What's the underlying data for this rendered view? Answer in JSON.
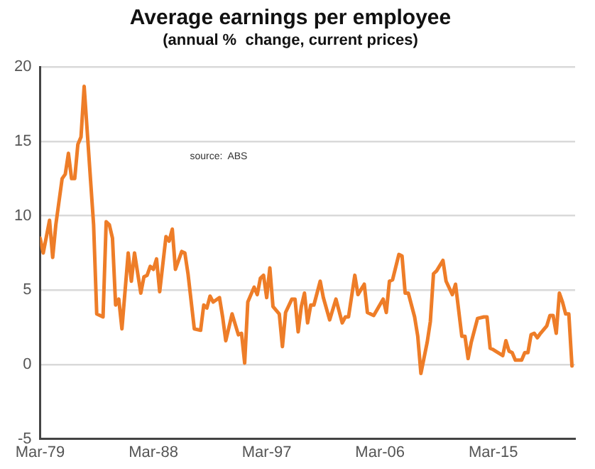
{
  "chart_data": {
    "type": "line",
    "title": "Average earnings per employee",
    "subtitle": "(annual %  change, current prices)",
    "annotations": [
      "source:  ABS"
    ],
    "x": [
      "1979-03",
      "1979-06",
      "1979-12",
      "1980-03",
      "1980-06",
      "1980-12",
      "1981-03",
      "1981-06",
      "1981-09",
      "1981-12",
      "1982-03",
      "1982-06",
      "1982-09",
      "1983-06",
      "1983-09",
      "1984-03",
      "1984-06",
      "1984-09",
      "1984-12",
      "1985-03",
      "1985-06",
      "1985-09",
      "1986-03",
      "1986-06",
      "1986-09",
      "1987-03",
      "1987-06",
      "1987-09",
      "1987-12",
      "1988-03",
      "1988-06",
      "1988-09",
      "1989-03",
      "1989-06",
      "1989-09",
      "1989-12",
      "1990-06",
      "1990-09",
      "1990-12",
      "1991-06",
      "1991-12",
      "1992-03",
      "1992-06",
      "1992-09",
      "1992-12",
      "1993-06",
      "1993-09",
      "1993-12",
      "1994-06",
      "1994-12",
      "1995-03",
      "1995-06",
      "1995-09",
      "1996-03",
      "1996-06",
      "1996-09",
      "1996-12",
      "1997-03",
      "1997-06",
      "1997-09",
      "1998-03",
      "1998-06",
      "1998-09",
      "1999-03",
      "1999-06",
      "1999-09",
      "1999-12",
      "2000-03",
      "2000-06",
      "2000-09",
      "2000-12",
      "2001-06",
      "2001-09",
      "2002-03",
      "2002-09",
      "2003-03",
      "2003-06",
      "2003-09",
      "2004-03",
      "2004-06",
      "2004-12",
      "2005-03",
      "2005-09",
      "2006-06",
      "2006-09",
      "2006-12",
      "2007-03",
      "2007-09",
      "2007-12",
      "2008-03",
      "2008-06",
      "2008-12",
      "2009-03",
      "2009-06",
      "2009-12",
      "2010-03",
      "2010-06",
      "2010-09",
      "2011-03",
      "2011-06",
      "2011-12",
      "2012-03",
      "2012-09",
      "2012-12",
      "2013-03",
      "2013-06",
      "2013-12",
      "2014-06",
      "2014-09",
      "2014-12",
      "2015-03",
      "2015-12",
      "2016-03",
      "2016-06",
      "2016-09",
      "2016-12",
      "2017-06",
      "2017-09",
      "2017-12",
      "2018-03",
      "2018-06",
      "2018-09",
      "2018-12",
      "2019-06",
      "2019-09",
      "2019-12",
      "2020-03",
      "2020-06",
      "2020-09",
      "2020-12",
      "2021-03",
      "2021-06"
    ],
    "series": [
      {
        "color": "#ee7d28",
        "values": [
          8.5,
          7.5,
          9.7,
          7.2,
          9.4,
          12.5,
          12.8,
          14.2,
          12.5,
          12.5,
          14.8,
          15.3,
          18.7,
          9.4,
          3.4,
          3.2,
          9.6,
          9.4,
          8.5,
          4.0,
          4.4,
          2.4,
          7.5,
          5.6,
          7.5,
          4.8,
          5.9,
          6.0,
          6.6,
          6.4,
          7.1,
          4.9,
          8.6,
          8.3,
          9.1,
          6.4,
          7.6,
          7.5,
          6.1,
          2.4,
          2.3,
          4.0,
          3.8,
          4.6,
          4.2,
          4.5,
          3.2,
          1.6,
          3.4,
          2.0,
          2.1,
          0.1,
          4.2,
          5.2,
          4.7,
          5.8,
          6.0,
          4.5,
          6.5,
          3.9,
          3.4,
          1.2,
          3.5,
          4.4,
          4.4,
          2.2,
          3.9,
          4.8,
          2.8,
          4.0,
          4.0,
          5.6,
          4.5,
          3.0,
          4.4,
          2.8,
          3.2,
          3.2,
          6.0,
          4.7,
          5.4,
          3.5,
          3.3,
          4.4,
          3.5,
          5.6,
          5.7,
          7.4,
          7.3,
          4.8,
          4.8,
          3.2,
          1.9,
          -0.6,
          1.5,
          2.9,
          6.1,
          6.3,
          7.0,
          5.6,
          4.7,
          5.4,
          1.9,
          1.9,
          0.4,
          1.5,
          3.1,
          3.2,
          3.2,
          1.1,
          1.0,
          0.6,
          1.6,
          0.9,
          0.8,
          0.3,
          0.3,
          0.8,
          0.8,
          2.0,
          2.1,
          1.8,
          2.1,
          2.6,
          3.3,
          3.3,
          2.1,
          4.8,
          4.2,
          3.4,
          3.4,
          -0.1
        ]
      }
    ],
    "xlim": [
      "1979-03",
      "2021-09"
    ],
    "xticks": [
      {
        "value": "1979-03",
        "label": "Mar-79"
      },
      {
        "value": "1988-03",
        "label": "Mar-88"
      },
      {
        "value": "1997-03",
        "label": "Mar-97"
      },
      {
        "value": "2006-03",
        "label": "Mar-06"
      },
      {
        "value": "2015-03",
        "label": "Mar-15"
      }
    ],
    "ylim": [
      -5,
      20
    ],
    "yticks": [
      -5,
      0,
      5,
      10,
      15,
      20
    ],
    "grid": "y",
    "marker": "none",
    "line_style": "solid"
  }
}
